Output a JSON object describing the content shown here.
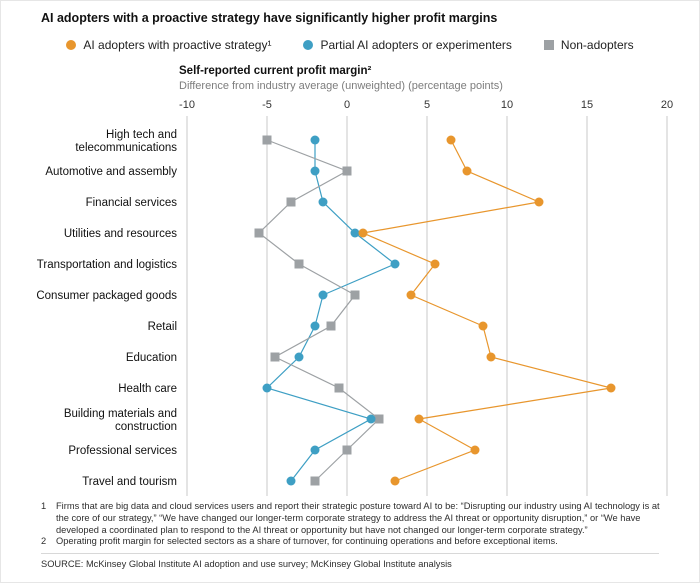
{
  "title": "AI adopters with a proactive strategy have significantly higher profit margins",
  "legend": [
    {
      "label": "AI adopters with proactive strategy¹",
      "marker": "circle",
      "color": "#E8962D"
    },
    {
      "label": "Partial AI adopters or experimenters",
      "marker": "circle",
      "color": "#3E9FC4"
    },
    {
      "label": "Non-adopters",
      "marker": "square",
      "color": "#9DA1A4"
    }
  ],
  "chart_data": {
    "type": "scatter",
    "title": "Self-reported current profit margin²",
    "subtitle": "Difference from industry average (unweighted) (percentage points)",
    "xlim": [
      -10,
      20
    ],
    "x_ticks": [
      -10,
      -5,
      0,
      5,
      10,
      15,
      20
    ],
    "grid": "vertical",
    "legend_position": "top",
    "categories": [
      "High tech and telecommunications",
      "Automotive and assembly",
      "Financial services",
      "Utilities and resources",
      "Transportation and logistics",
      "Consumer packaged goods",
      "Retail",
      "Education",
      "Health care",
      "Building materials and construction",
      "Professional services",
      "Travel and tourism"
    ],
    "series": [
      {
        "name": "AI adopters with proactive strategy",
        "marker": "circle",
        "color": "#E8962D",
        "values": [
          6.5,
          7.5,
          12,
          1,
          5.5,
          4,
          8.5,
          9,
          16.5,
          4.5,
          8,
          3
        ]
      },
      {
        "name": "Partial AI adopters or experimenters",
        "marker": "circle",
        "color": "#3E9FC4",
        "values": [
          -2,
          -2,
          -1.5,
          0.5,
          3,
          -1.5,
          -2,
          -3,
          -5,
          1.5,
          -2,
          -3.5
        ]
      },
      {
        "name": "Non-adopters",
        "marker": "square",
        "color": "#9DA1A4",
        "values": [
          -5,
          0,
          -3.5,
          -5.5,
          -3,
          0.5,
          -1,
          -4.5,
          -0.5,
          2,
          0,
          -2
        ]
      }
    ]
  },
  "footnotes": [
    {
      "num": "1",
      "text": "Firms that are big data and cloud services users and report their strategic posture toward AI to be: “Disrupting our industry using AI technology is at the core of our strategy,” “We have changed our longer-term corporate strategy to address the AI threat or opportunity disruption,” or “We have developed a coordinated plan to respond to the AI threat or opportunity but have not changed our longer-term corporate strategy.”"
    },
    {
      "num": "2",
      "text": "Operating profit margin for selected sectors as a share of turnover, for continuing operations and before exceptional items."
    }
  ],
  "source": "SOURCE:  McKinsey Global Institute AI adoption and use survey; McKinsey Global Institute analysis"
}
